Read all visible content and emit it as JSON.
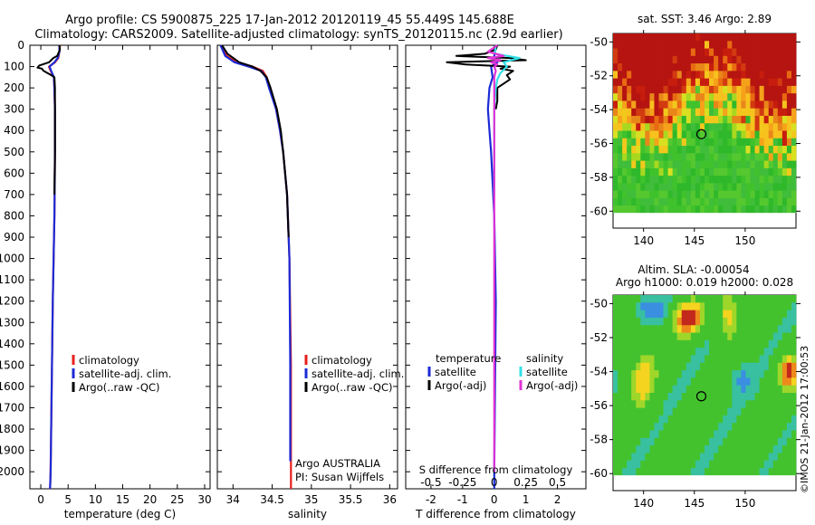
{
  "figure": {
    "title_line1": "Argo profile: CS 5900875_225 17-Jan-2012 20120119_45 55.449S 145.688E",
    "title_line2": "Climatology: CARS2009. Satellite-adjusted climatology: synTS_20120115.nc (2.9d earlier)",
    "footer_vertical": "©IMOS 21-Jan-2012 17:00:53"
  },
  "colors": {
    "climatology": "#e8201c",
    "satellite": "#1c2bd6",
    "argo": "#000000",
    "sat_salinity": "#33e0e6",
    "argo_salinity": "#e033d6"
  },
  "chart_data": [
    {
      "type": "line",
      "name": "temperature_profile",
      "xlabel": "temperature (deg C)",
      "ylabel": "",
      "xlim": [
        -2,
        31
      ],
      "ylim": [
        2080,
        0
      ],
      "xticks": [
        0,
        5,
        10,
        15,
        20,
        25,
        30
      ],
      "yticks": [
        0,
        100,
        200,
        300,
        400,
        500,
        600,
        700,
        800,
        900,
        1000,
        1100,
        1200,
        1300,
        1400,
        1500,
        1600,
        1700,
        1800,
        1900,
        2000
      ],
      "legend": {
        "placement": "center",
        "entries": [
          {
            "label": "climatology",
            "color_key": "climatology"
          },
          {
            "label": "satellite-adj. clim.",
            "color_key": "satellite"
          },
          {
            "label": "Argo(..raw -QC)",
            "color_key": "argo"
          }
        ]
      },
      "series": [
        {
          "key": "climatology",
          "depth": [
            0,
            30,
            60,
            80,
            100,
            120,
            150,
            200,
            300,
            500,
            800,
            1200,
            1600,
            2000,
            2080
          ],
          "values": [
            3.5,
            3.4,
            3.2,
            2.6,
            1.5,
            1.8,
            2.4,
            2.5,
            2.6,
            2.6,
            2.5,
            2.2,
            2.0,
            1.8,
            1.7
          ]
        },
        {
          "key": "satellite",
          "depth": [
            0,
            30,
            60,
            80,
            100,
            120,
            150,
            200,
            300,
            500,
            800,
            1200,
            1600,
            2000,
            2080
          ],
          "values": [
            3.4,
            3.4,
            3.1,
            2.5,
            1.6,
            1.9,
            2.4,
            2.5,
            2.6,
            2.6,
            2.5,
            2.2,
            2.0,
            1.8,
            1.7
          ]
        },
        {
          "key": "argo",
          "depth": [
            0,
            20,
            50,
            60,
            80,
            95,
            105,
            110,
            120,
            140,
            150,
            200,
            300,
            500,
            700
          ],
          "values": [
            3.4,
            3.5,
            3.0,
            2.3,
            1.5,
            -0.3,
            -0.6,
            0.2,
            0.5,
            1.9,
            2.5,
            2.6,
            2.6,
            2.6,
            2.5
          ]
        }
      ]
    },
    {
      "type": "line",
      "name": "salinity_profile",
      "xlabel": "salinity",
      "xlim": [
        33.8,
        36.1
      ],
      "ylim": [
        2080,
        0
      ],
      "xticks": [
        34,
        34.5,
        35,
        35.5,
        36
      ],
      "xticklabels": [
        "34",
        "34.5",
        "35",
        "35.5",
        "36"
      ],
      "legend": {
        "placement": "center",
        "entries": [
          {
            "label": "climatology",
            "color_key": "climatology"
          },
          {
            "label": "satellite-adj. clim.",
            "color_key": "satellite"
          },
          {
            "label": "Argo(..raw -QC)",
            "color_key": "argo"
          }
        ]
      },
      "annotations": [
        "Argo AUSTRALIA",
        "PI: Susan Wijffels"
      ],
      "series": [
        {
          "key": "climatology",
          "depth": [
            0,
            50,
            80,
            100,
            120,
            150,
            200,
            300,
            400,
            500,
            700,
            1000,
            1500,
            2080
          ],
          "values": [
            33.85,
            33.92,
            34.05,
            34.25,
            34.38,
            34.43,
            34.47,
            34.55,
            34.6,
            34.64,
            34.69,
            34.72,
            34.74,
            34.74
          ]
        },
        {
          "key": "satellite",
          "depth": [
            0,
            50,
            80,
            100,
            120,
            150,
            200,
            300,
            400,
            500,
            700,
            1000,
            1500,
            1950
          ],
          "values": [
            33.84,
            33.9,
            34.02,
            34.2,
            34.36,
            34.42,
            34.46,
            34.55,
            34.6,
            34.64,
            34.69,
            34.72,
            34.73,
            34.73
          ]
        },
        {
          "key": "argo",
          "depth": [
            0,
            40,
            80,
            100,
            120,
            150,
            200,
            300,
            400,
            500,
            700,
            900
          ],
          "values": [
            33.86,
            33.93,
            34.08,
            34.25,
            34.35,
            34.43,
            34.48,
            34.56,
            34.61,
            34.64,
            34.69,
            34.71
          ]
        }
      ]
    },
    {
      "type": "line",
      "name": "difference_profile",
      "xlabel": "T difference from climatology",
      "xlabel_top": "S difference from climatology",
      "xlim": [
        -2.8,
        2.9
      ],
      "ylim": [
        2080,
        0
      ],
      "xticks": [
        -2,
        -1,
        0,
        1,
        2
      ],
      "s_xticklabels": [
        "-0.5",
        "-0.25",
        "0",
        "0.25",
        "0.5"
      ],
      "legend": {
        "placement": "center",
        "columns": [
          {
            "heading": "temperature",
            "entries": [
              {
                "label": "satellite",
                "color_key": "satellite"
              },
              {
                "label": "Argo(-adj)",
                "color_key": "argo"
              }
            ]
          },
          {
            "heading": "salinity",
            "entries": [
              {
                "label": "satellite",
                "color_key": "sat_salinity"
              },
              {
                "label": "Argo(-adj)",
                "color_key": "argo_salinity"
              }
            ]
          }
        ]
      },
      "series": [
        {
          "key": "argo",
          "depth": [
            0,
            20,
            40,
            50,
            60,
            70,
            80,
            90,
            100,
            110,
            120,
            140,
            160,
            200,
            260,
            300
          ],
          "values": [
            0.1,
            0.05,
            -0.3,
            -1.2,
            0.5,
            1.0,
            -1.5,
            -0.9,
            0.5,
            0.2,
            0.6,
            0.4,
            0.5,
            0.1,
            0.1,
            0.05
          ]
        },
        {
          "key": "satellite",
          "depth": [
            0,
            50,
            80,
            100,
            150,
            200,
            300,
            400,
            500,
            800,
            1200,
            2000,
            2080
          ],
          "values": [
            0.05,
            0.0,
            0.1,
            -0.1,
            -0.05,
            -0.15,
            -0.2,
            -0.15,
            -0.1,
            0.0,
            0.05,
            0.0,
            0.0
          ]
        },
        {
          "key": "sat_salinity",
          "depth": [
            0,
            40,
            60,
            80,
            100,
            130,
            160,
            200,
            300,
            400,
            500,
            700
          ],
          "values": [
            0.05,
            0.02,
            0.8,
            0.3,
            0.4,
            0.2,
            0.1,
            0.05,
            0.0,
            0.0,
            0.0,
            0.0
          ]
        },
        {
          "key": "argo_salinity",
          "depth": [
            0,
            30,
            50,
            60,
            70,
            80,
            90,
            100,
            120,
            150,
            200,
            300,
            500,
            1000,
            2000
          ],
          "values": [
            0.1,
            -0.2,
            0.3,
            -0.2,
            0.2,
            -0.1,
            0.1,
            0.0,
            0.05,
            0.0,
            0.0,
            0.0,
            0.0,
            0.0,
            0.0
          ]
        }
      ]
    },
    {
      "type": "heatmap",
      "name": "sst_map",
      "title": "sat. SST: 3.46 Argo: 2.89",
      "xlim": [
        137,
        155
      ],
      "ylim": [
        -61,
        -49.5
      ],
      "xticks": [
        140,
        145,
        150
      ],
      "yticks": [
        -50,
        -52,
        -54,
        -56,
        -58,
        -60
      ],
      "marker": {
        "lon": 145.688,
        "lat": -55.449
      }
    },
    {
      "type": "heatmap",
      "name": "sla_map",
      "title_line1": "Altim. SLA: -0.00054",
      "title_line2": "Argo h1000: 0.019 h2000: 0.028",
      "xlim": [
        137,
        155
      ],
      "ylim": [
        -61,
        -49.5
      ],
      "xticks": [
        140,
        145,
        150
      ],
      "yticks": [
        -50,
        -52,
        -54,
        -56,
        -58,
        -60
      ],
      "marker": {
        "lon": 145.688,
        "lat": -55.449
      }
    }
  ]
}
